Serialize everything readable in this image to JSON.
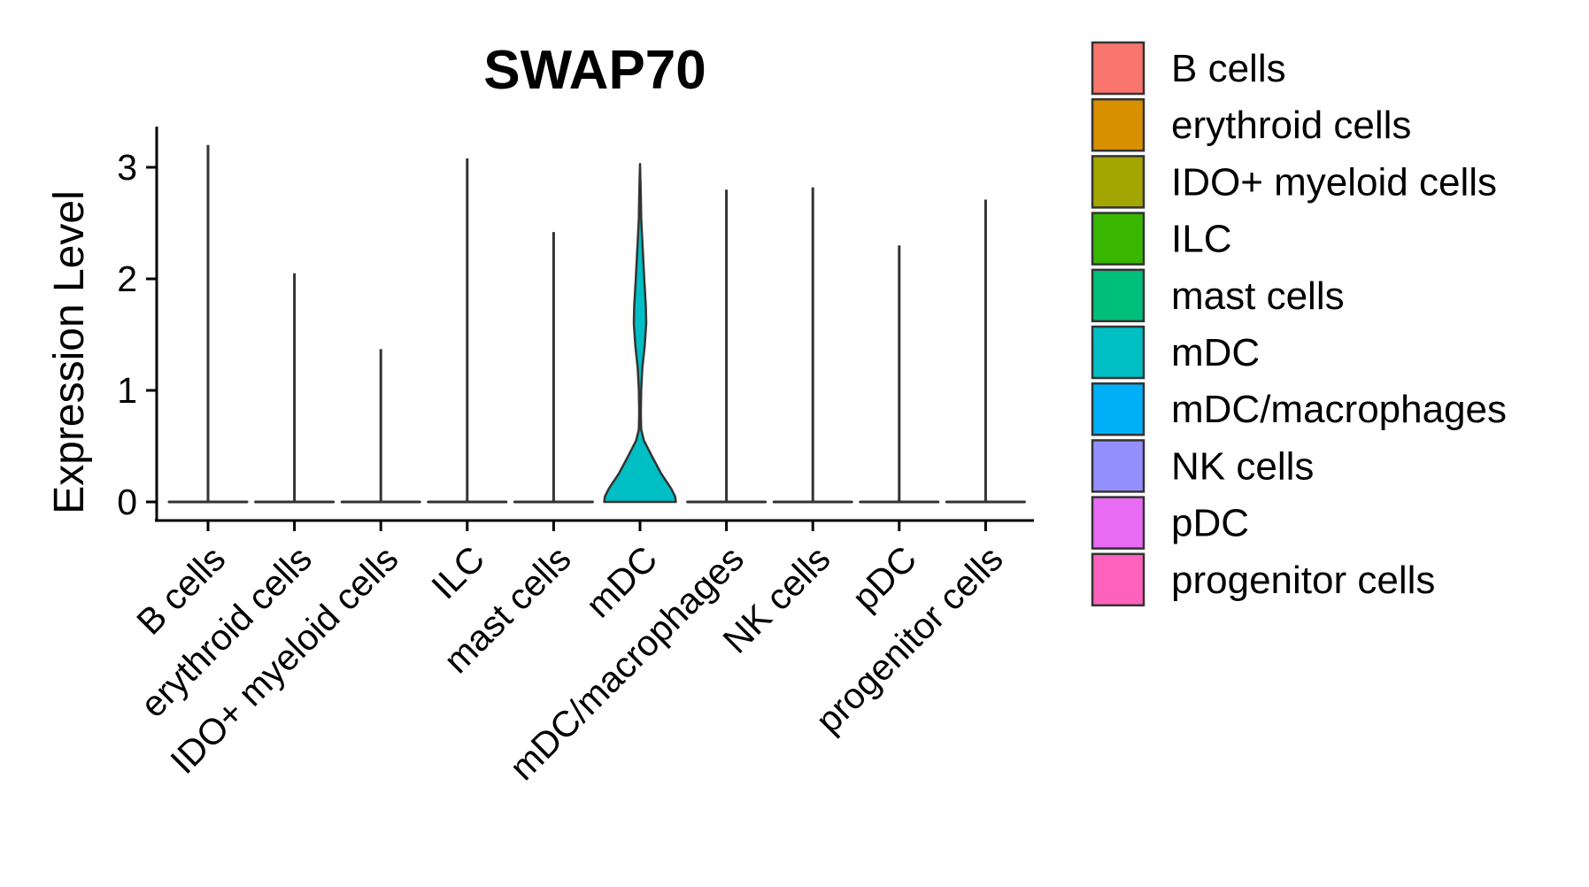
{
  "chart_data": {
    "type": "violin",
    "title": "SWAP70",
    "xlabel": "",
    "ylabel": "Expression Level",
    "ylim": [
      -0.15,
      3.35
    ],
    "yticks": [
      0,
      1,
      2,
      3
    ],
    "ytick_labels": [
      "0",
      "1",
      "2",
      "3"
    ],
    "categories": [
      "B cells",
      "erythroid cells",
      "IDO+ myeloid cells",
      "ILC",
      "mast cells",
      "mDC",
      "mDC/macrophages",
      "NK cells",
      "pDC",
      "progenitor cells"
    ],
    "max_values": [
      3.2,
      2.05,
      1.37,
      3.08,
      2.42,
      3.03,
      2.8,
      2.82,
      2.3,
      2.71
    ],
    "colors": [
      "#F8766D",
      "#D89000",
      "#A3A500",
      "#39B600",
      "#00BF7D",
      "#00BFC4",
      "#00B0F6",
      "#9590FF",
      "#E76BF3",
      "#FF62BC"
    ],
    "mdc_density": {
      "y": [
        0.0,
        0.05,
        0.12,
        0.25,
        0.4,
        0.55,
        0.65,
        0.8,
        1.0,
        1.2,
        1.4,
        1.6,
        1.75,
        2.0,
        2.2,
        2.4,
        2.55,
        2.75,
        3.03
      ],
      "half_width": [
        0.92,
        0.9,
        0.8,
        0.55,
        0.32,
        0.1,
        0.03,
        0.02,
        0.03,
        0.06,
        0.12,
        0.16,
        0.15,
        0.11,
        0.08,
        0.05,
        0.03,
        0.02,
        0.0
      ]
    },
    "legend": {
      "position": "right",
      "entries": [
        "B cells",
        "erythroid cells",
        "IDO+ myeloid cells",
        "ILC",
        "mast cells",
        "mDC",
        "mDC/macrophages",
        "NK cells",
        "pDC",
        "progenitor cells"
      ]
    },
    "grid": false
  }
}
